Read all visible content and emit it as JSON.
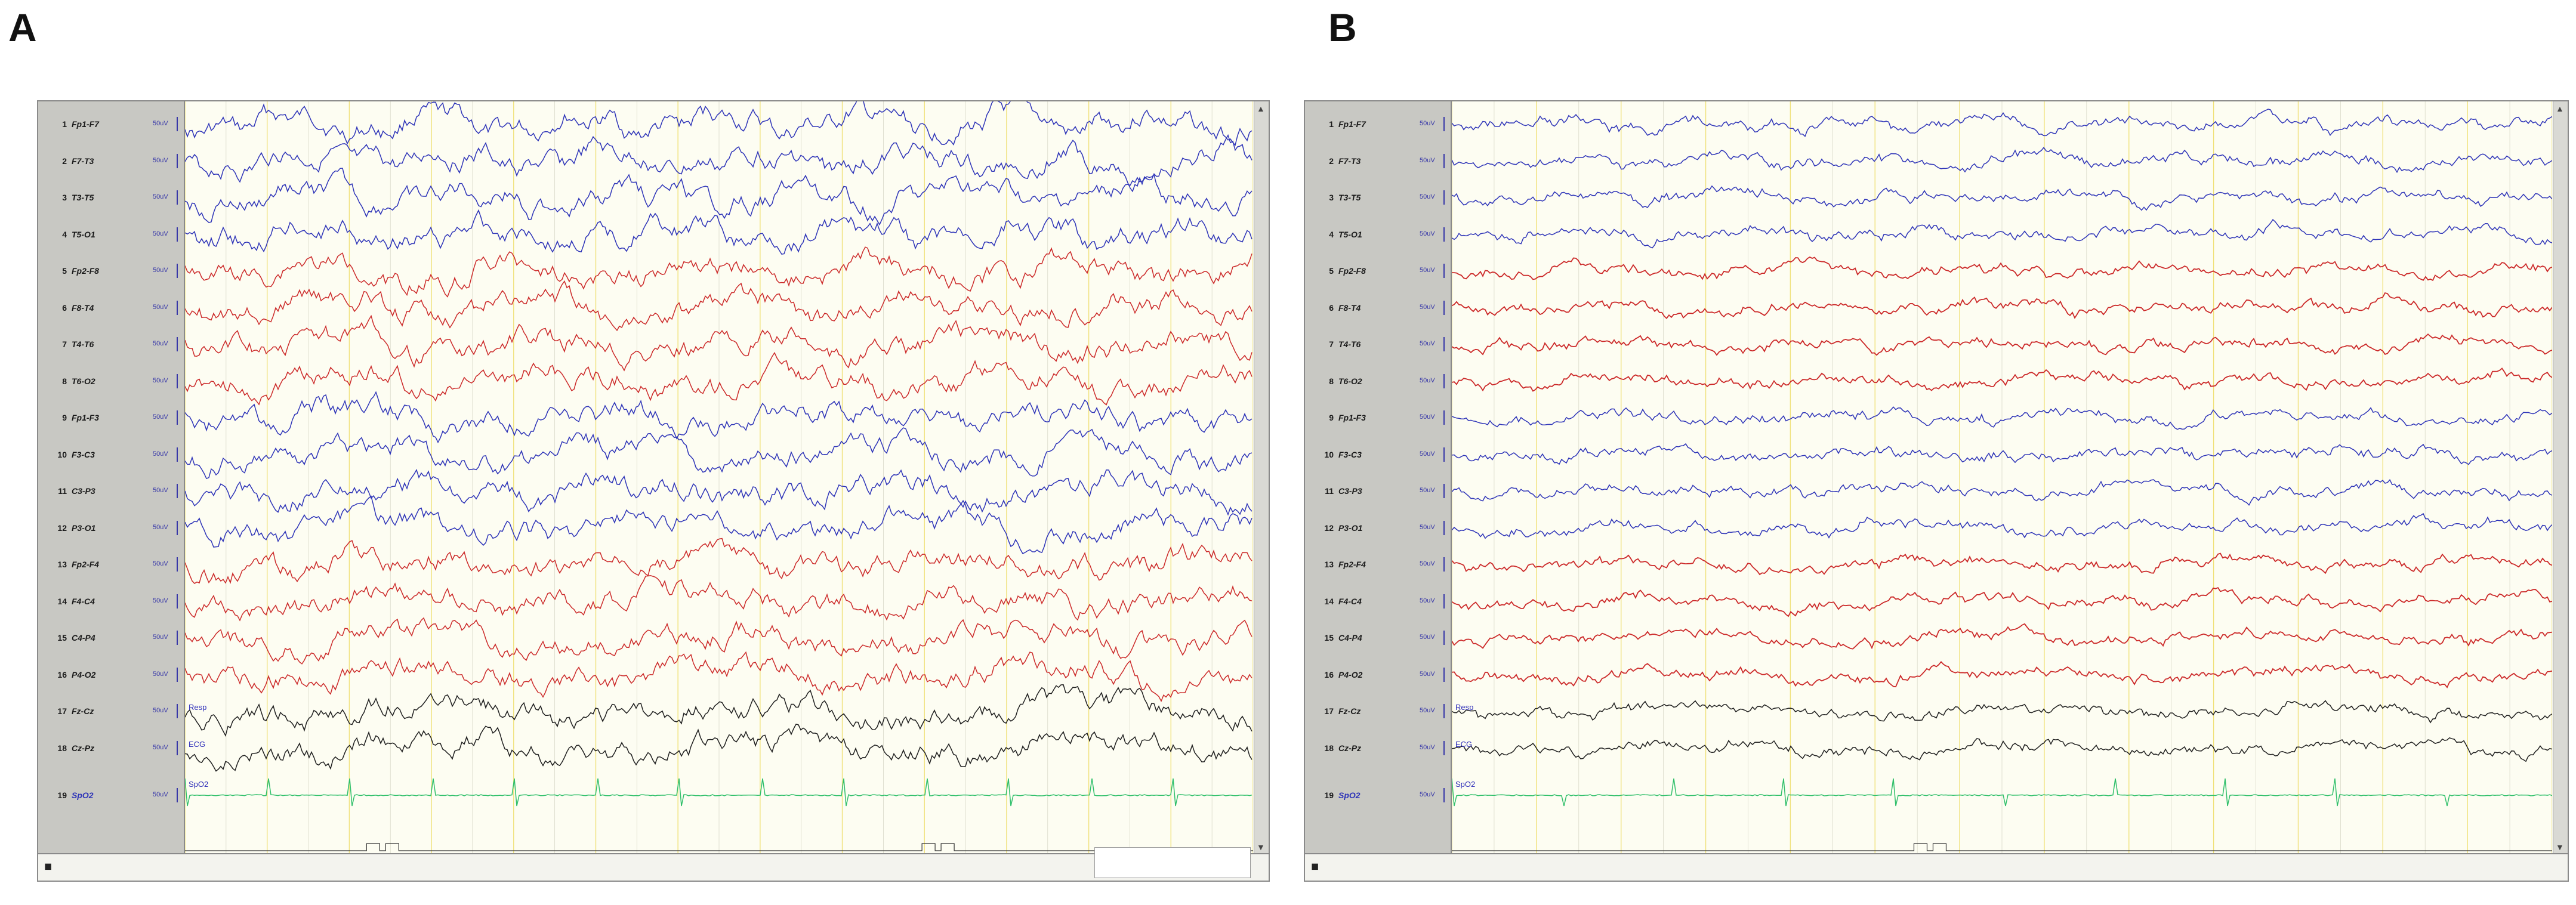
{
  "panels": [
    {
      "letter": "A",
      "channels": [
        {
          "num": "1",
          "name": "Fp1-F7"
        },
        {
          "num": "2",
          "name": "F7-T3"
        },
        {
          "num": "3",
          "name": "T3-T5"
        },
        {
          "num": "4",
          "name": "T5-O1"
        },
        {
          "num": "5",
          "name": "Fp2-F8"
        },
        {
          "num": "6",
          "name": "F8-T4"
        },
        {
          "num": "7",
          "name": "T4-T6"
        },
        {
          "num": "8",
          "name": "T6-O2"
        },
        {
          "num": "9",
          "name": "Fp1-F3"
        },
        {
          "num": "10",
          "name": "F3-C3"
        },
        {
          "num": "11",
          "name": "C3-P3"
        },
        {
          "num": "12",
          "name": "P3-O1"
        },
        {
          "num": "13",
          "name": "Fp2-F4"
        },
        {
          "num": "14",
          "name": "F4-C4"
        },
        {
          "num": "15",
          "name": "C4-P4"
        },
        {
          "num": "16",
          "name": "P4-O2"
        },
        {
          "num": "17",
          "name": "Fz-Cz"
        },
        {
          "num": "18",
          "name": "Cz-Pz"
        },
        {
          "num": "19",
          "name": "SpO2"
        }
      ],
      "inline_labels": {
        "resp": "Resp",
        "ecg": "ECG",
        "spo2": "SpO2"
      }
    },
    {
      "letter": "B",
      "channels": [
        {
          "num": "1",
          "name": "Fp1-F7"
        },
        {
          "num": "2",
          "name": "F7-T3"
        },
        {
          "num": "3",
          "name": "T3-T5"
        },
        {
          "num": "4",
          "name": "T5-O1"
        },
        {
          "num": "5",
          "name": "Fp2-F8"
        },
        {
          "num": "6",
          "name": "F8-T4"
        },
        {
          "num": "7",
          "name": "T4-T6"
        },
        {
          "num": "8",
          "name": "T6-O2"
        },
        {
          "num": "9",
          "name": "Fp1-F3"
        },
        {
          "num": "10",
          "name": "F3-C3"
        },
        {
          "num": "11",
          "name": "C3-P3"
        },
        {
          "num": "12",
          "name": "P3-O1"
        },
        {
          "num": "13",
          "name": "Fp2-F4"
        },
        {
          "num": "14",
          "name": "F4-C4"
        },
        {
          "num": "15",
          "name": "C4-P4"
        },
        {
          "num": "16",
          "name": "P4-O2"
        },
        {
          "num": "17",
          "name": "Fz-Cz"
        },
        {
          "num": "18",
          "name": "Cz-Pz"
        },
        {
          "num": "19",
          "name": "SpO2"
        }
      ],
      "inline_labels": {
        "resp": "Resp",
        "ecg": "ECG",
        "spo2": "SpO2"
      }
    }
  ],
  "sensitivity_label": "50uV",
  "colors": {
    "left_chain": "#2e34b8",
    "right_chain": "#cc2a2a",
    "midline": "#1f1f1f",
    "ecg": "#2fbf6a",
    "grid_second": "#f0e17a",
    "background": "#fdfdf2"
  },
  "icons": {
    "scroll_up": "arrow-up-icon",
    "scroll_down": "arrow-down-icon",
    "menu": "menu-icon"
  }
}
